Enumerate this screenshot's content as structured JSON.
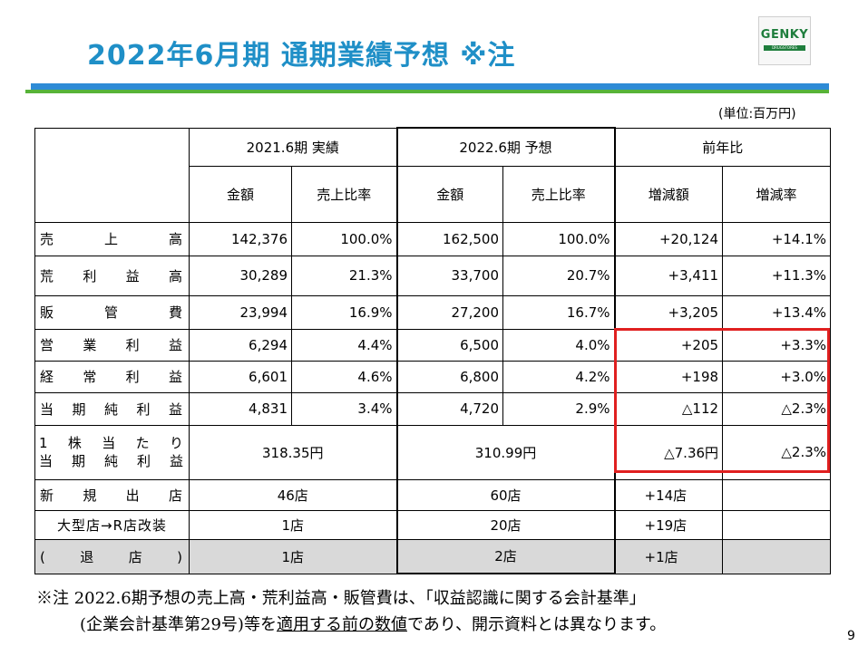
{
  "title": "2022年6月期 通期業績予想 ※注",
  "logo": {
    "text": "GENKY",
    "sub": "DRUGSTORES"
  },
  "unit": "(単位:百万円)",
  "headers": {
    "fy2021": "2021.6期 実績",
    "fy2022": "2022.6期 予想",
    "yoy": "前年比",
    "amount": "金額",
    "ratio": "売上比率",
    "change": "増減額",
    "change_rate": "増減率"
  },
  "rows": [
    {
      "label": "売上高",
      "a21": "142,376",
      "r21": "100.0%",
      "a22": "162,500",
      "r22": "100.0%",
      "chg": "+20,124",
      "rate": "+14.1%"
    },
    {
      "label": "荒利益高",
      "a21": "30,289",
      "r21": "21.3%",
      "a22": "33,700",
      "r22": "20.7%",
      "chg": "+3,411",
      "rate": "+11.3%"
    },
    {
      "label": "販管費",
      "a21": "23,994",
      "r21": "16.9%",
      "a22": "27,200",
      "r22": "16.7%",
      "chg": "+3,205",
      "rate": "+13.4%"
    },
    {
      "label": "営業利益",
      "a21": "6,294",
      "r21": "4.4%",
      "a22": "6,500",
      "r22": "4.0%",
      "chg": "+205",
      "rate": "+3.3%"
    },
    {
      "label": "経常利益",
      "a21": "6,601",
      "r21": "4.6%",
      "a22": "6,800",
      "r22": "4.2%",
      "chg": "+198",
      "rate": "+3.0%"
    },
    {
      "label": "当期純利益",
      "a21": "4,831",
      "r21": "3.4%",
      "a22": "4,720",
      "r22": "2.9%",
      "chg": "△112",
      "rate": "△2.3%"
    }
  ],
  "eps": {
    "label1": "1株当たり",
    "label2": "当期純利益",
    "v21": "318.35円",
    "v22": "310.99円",
    "chg": "△7.36円",
    "rate": "△2.3%"
  },
  "stores": [
    {
      "label": "新規出店",
      "v21": "46店",
      "v22": "60店",
      "chg": "+14店"
    },
    {
      "label": "大型店→R店改装",
      "v21": "1店",
      "v22": "20店",
      "chg": "+19店"
    },
    {
      "label": "(退店)",
      "v21": "1店",
      "v22": "2店",
      "chg": "+1店"
    }
  ],
  "note": {
    "line1": "※注 2022.6期予想の売上高・荒利益高・販管費は、「収益認識に関する会計基準」",
    "line2_pre": "(企業会計基準第29号)等を",
    "line2_u": "適用する前の数値",
    "line2_post": "であり、開示資料とは異なります。"
  },
  "page_number": "9"
}
